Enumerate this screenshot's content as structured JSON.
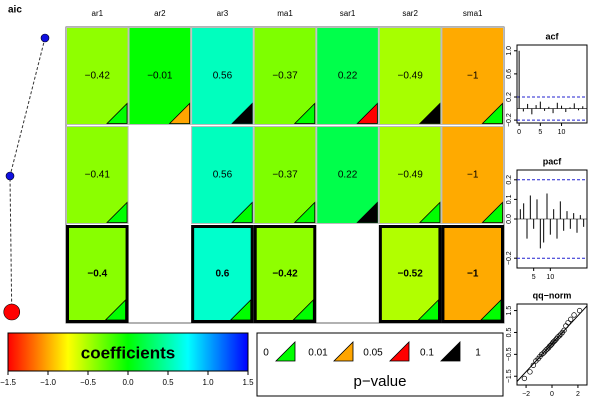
{
  "chart_data": [
    {
      "type": "aic",
      "title": "aic",
      "values": [
        1,
        0,
        0.05
      ],
      "xlim": [
        0,
        1
      ],
      "selected": 2
    },
    {
      "type": "heatmap",
      "columns": [
        "ar1",
        "ar2",
        "ar3",
        "ma1",
        "sar1",
        "sar2",
        "sma1"
      ],
      "selected": 2,
      "rows": [
        {
          "values": [
            -0.42,
            -0.01,
            0.56,
            -0.37,
            0.22,
            -0.49,
            -1
          ],
          "value_labels": [
            "−0.42",
            "−0.01",
            "0.56",
            "−0.37",
            "0.22",
            "−0.49",
            "−1"
          ],
          "pvalues": [
            0.003,
            0.03,
            0.5,
            0.002,
            0.07,
            0.5,
            0.001
          ]
        },
        {
          "values": [
            -0.41,
            null,
            0.56,
            -0.37,
            0.22,
            -0.49,
            -1
          ],
          "value_labels": [
            "−0.41",
            null,
            "0.56",
            "−0.37",
            "0.22",
            "−0.49",
            "−1"
          ],
          "pvalues": [
            0.002,
            null,
            0.001,
            0.003,
            0.5,
            0.001,
            0.001
          ]
        },
        {
          "values": [
            -0.4,
            null,
            0.6,
            -0.42,
            null,
            -0.52,
            -1
          ],
          "value_labels": [
            "−0.4",
            null,
            "0.6",
            "−0.42",
            null,
            "−0.52",
            "−1"
          ],
          "pvalues": [
            0.002,
            null,
            0.001,
            0.001,
            null,
            0.001,
            0.001
          ]
        }
      ],
      "colorbar": {
        "title": "coefficients",
        "xlim": [
          -1.5,
          1.5
        ],
        "xticks": [
          {
            "value": -1.5,
            "label": "−1.5"
          },
          {
            "value": -1,
            "label": "−1.0"
          },
          {
            "value": -0.5,
            "label": "−0.5"
          },
          {
            "value": 0,
            "label": "0.0"
          },
          {
            "value": 0.5,
            "label": "0.5"
          },
          {
            "value": 1,
            "label": "1.0"
          },
          {
            "value": 1.5,
            "label": "1.5"
          }
        ],
        "colors": [
          "#ff0000",
          "#ffff00",
          "#00ff00",
          "#00ffff",
          "#0000ff"
        ]
      },
      "pvalue_legend": {
        "title": "p−value",
        "breaks": [
          0,
          0.01,
          0.05,
          0.1,
          1
        ],
        "colors": [
          "#00ff00",
          "#ffa500",
          "#ff0000",
          "#000000"
        ]
      }
    },
    {
      "type": "acf",
      "title": "acf",
      "values": [
        1,
        -0.05,
        0.08,
        -0.1,
        0.06,
        0.12,
        -0.04,
        0.03,
        -0.08,
        0.1,
        0.05,
        -0.06,
        0.02,
        0.09,
        -0.03,
        0.04
      ],
      "x": [
        0,
        1,
        2,
        3,
        4,
        5,
        6,
        7,
        8,
        9,
        10,
        11,
        12,
        13,
        14,
        15
      ],
      "ci": 0.2,
      "xlim": [
        -0.5,
        16
      ],
      "xticks": [
        0,
        5,
        10
      ],
      "ylim": [
        -0.25,
        1.1
      ],
      "yticks": [
        {
          "value": -0.2,
          "label": "−0.2"
        },
        0.2,
        0.6,
        {
          "value": 1,
          "label": "1.0"
        }
      ]
    },
    {
      "type": "acf",
      "title": "pacf",
      "values": [
        0.05,
        0.08,
        -0.1,
        0.12,
        -0.05,
        0.1,
        -0.15,
        -0.12,
        0.13,
        -0.08,
        0.05,
        -0.1,
        0.09,
        -0.06,
        0.04,
        -0.05,
        0.03,
        -0.07,
        0.02,
        -0.04
      ],
      "x": [
        1,
        2,
        3,
        4,
        5,
        6,
        7,
        8,
        9,
        10,
        11,
        12,
        13,
        14,
        15,
        16,
        17,
        18,
        19,
        20
      ],
      "ci": 0.2,
      "xlim": [
        0,
        21
      ],
      "xticks": [
        5,
        10
      ],
      "ylim": [
        -0.25,
        0.25
      ],
      "yticks": [
        {
          "value": -0.2,
          "label": "−0.2"
        },
        {
          "value": 0,
          "label": "0.0"
        },
        0.1,
        0.2
      ]
    },
    {
      "type": "qq",
      "title": "qq−norm",
      "x": [
        -2.13,
        -1.7,
        -1.44,
        -1.24,
        -1.07,
        -0.93,
        -0.8,
        -0.68,
        -0.57,
        -0.46,
        -0.36,
        -0.26,
        -0.17,
        -0.08,
        0,
        0.08,
        0.17,
        0.26,
        0.36,
        0.46,
        0.57,
        0.68,
        0.8,
        0.93,
        1.07,
        1.24,
        1.44,
        1.7,
        2.13
      ],
      "values": [
        -1.6,
        -1.3,
        -1.0,
        -0.8,
        -0.7,
        -0.6,
        -0.5,
        -0.45,
        -0.38,
        -0.3,
        -0.25,
        -0.2,
        -0.12,
        -0.08,
        -0.02,
        0.05,
        0.1,
        0.15,
        0.22,
        0.3,
        0.35,
        0.42,
        0.5,
        0.6,
        0.8,
        0.95,
        1.1,
        1.3,
        1.5
      ],
      "xlim": [
        -2.7,
        2.7
      ],
      "xticks": [
        {
          "value": -2,
          "label": "−2"
        },
        0,
        2
      ],
      "ylim": [
        -1.9,
        1.8
      ],
      "yticks": [
        {
          "value": -1.5,
          "label": "−1.5"
        },
        {
          "value": -0.5,
          "label": "−0.5"
        },
        0.5,
        1.5
      ]
    }
  ]
}
